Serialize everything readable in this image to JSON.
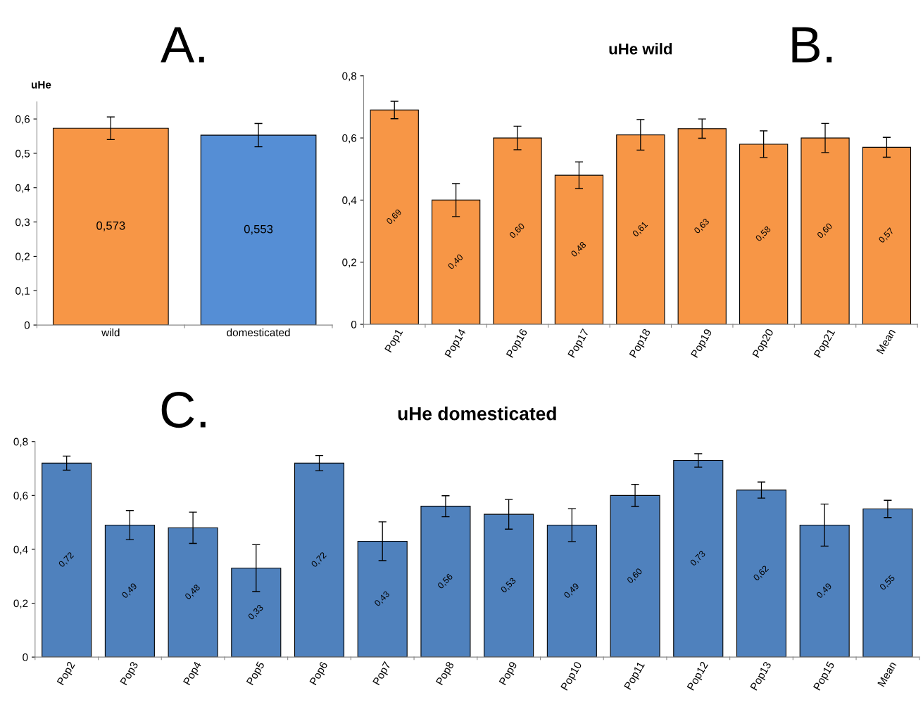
{
  "chart_data": [
    {
      "type": "bar",
      "ylabel": "uHe",
      "annotations": [
        "A."
      ],
      "categories": [
        "wild",
        "domesticated"
      ],
      "values": [
        0.573,
        0.553
      ],
      "colors": [
        "#f79646",
        "#558ed5"
      ],
      "errors": [
        0.033,
        0.034
      ],
      "value_labels": [
        "0,573",
        "0,553"
      ],
      "ylim": [
        0,
        0.65
      ],
      "yticks": [
        {
          "value": 0,
          "label": "0"
        },
        {
          "value": 0.1,
          "label": "0,1"
        },
        {
          "value": 0.2,
          "label": "0,2"
        },
        {
          "value": 0.3,
          "label": "0,3"
        },
        {
          "value": 0.4,
          "label": "0,4"
        },
        {
          "value": 0.5,
          "label": "0,5"
        },
        {
          "value": 0.6,
          "label": "0,6"
        }
      ],
      "grid": false,
      "legend": false
    },
    {
      "type": "bar",
      "title": "uHe wild",
      "annotations": [
        "B."
      ],
      "categories": [
        "Pop1",
        "Pop14",
        "Pop16",
        "Pop17",
        "Pop18",
        "Pop19",
        "Pop20",
        "Pop21",
        "Mean"
      ],
      "values": [
        0.69,
        0.4,
        0.6,
        0.48,
        0.61,
        0.63,
        0.58,
        0.6,
        0.57
      ],
      "color": "#f79646",
      "errors": [
        0.028,
        0.053,
        0.038,
        0.043,
        0.049,
        0.031,
        0.043,
        0.047,
        0.032
      ],
      "value_labels": [
        "0,69",
        "0,40",
        "0,60",
        "0,48",
        "0,61",
        "0,63",
        "0,58",
        "0,60",
        "0,57"
      ],
      "ylim": [
        0,
        0.8
      ],
      "yticks": [
        {
          "value": 0,
          "label": "0"
        },
        {
          "value": 0.2,
          "label": "0,2"
        },
        {
          "value": 0.4,
          "label": "0,4"
        },
        {
          "value": 0.6,
          "label": "0,6"
        },
        {
          "value": 0.8,
          "label": "0,8"
        }
      ],
      "grid": false,
      "legend": false
    },
    {
      "type": "bar",
      "title": "uHe domesticated",
      "annotations": [
        "C."
      ],
      "categories": [
        "Pop2",
        "Pop3",
        "Pop4",
        "Pop5",
        "Pop6",
        "Pop7",
        "Pop8",
        "Pop9",
        "Pop10",
        "Pop11",
        "Pop12",
        "Pop13",
        "Pop15",
        "Mean"
      ],
      "values": [
        0.72,
        0.49,
        0.48,
        0.33,
        0.72,
        0.43,
        0.56,
        0.53,
        0.49,
        0.6,
        0.73,
        0.62,
        0.49,
        0.55
      ],
      "color": "#4f81bd",
      "errors": [
        0.026,
        0.054,
        0.058,
        0.087,
        0.028,
        0.072,
        0.039,
        0.055,
        0.061,
        0.041,
        0.025,
        0.03,
        0.078,
        0.032
      ],
      "value_labels": [
        "0,72",
        "0,49",
        "0,48",
        "0,33",
        "0,72",
        "0,43",
        "0,56",
        "0,53",
        "0,49",
        "0,60",
        "0,73",
        "0,62",
        "0,49",
        "0,55"
      ],
      "ylim": [
        0,
        0.8
      ],
      "yticks": [
        {
          "value": 0,
          "label": "0"
        },
        {
          "value": 0.2,
          "label": "0,2"
        },
        {
          "value": 0.4,
          "label": "0,4"
        },
        {
          "value": 0.6,
          "label": "0,6"
        },
        {
          "value": 0.8,
          "label": "0,8"
        }
      ],
      "grid": false,
      "legend": false
    }
  ]
}
